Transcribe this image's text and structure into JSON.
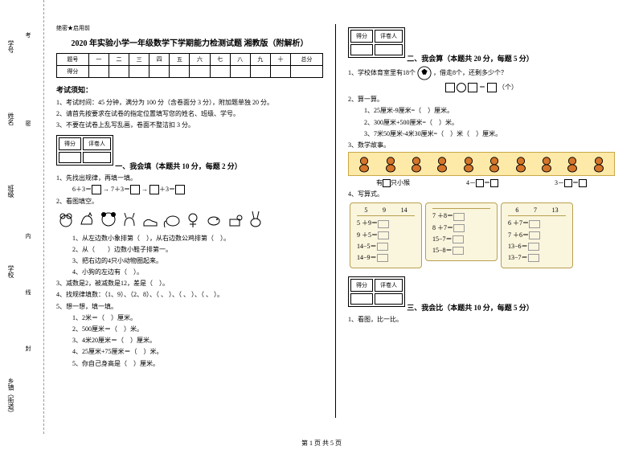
{
  "binding": {
    "labels": [
      "学号",
      "姓名",
      "班级",
      "学校",
      "乡镇（街道）"
    ],
    "marks": [
      "考",
      "密",
      "内",
      "线",
      "封"
    ]
  },
  "header_mark": "绝密★启用前",
  "title": "2020 年实验小学一年级数学下学期能力检测试题 湘教版（附解析）",
  "score_table": {
    "headers": [
      "题号",
      "一",
      "二",
      "三",
      "四",
      "五",
      "六",
      "七",
      "八",
      "九",
      "十",
      "总分"
    ],
    "row_label": "得分"
  },
  "exam_notice_title": "考试须知：",
  "notices": [
    "1、考试时间：45 分钟，满分为 100 分（含卷面分 3 分），附加题单独 20 分。",
    "2、请首先按要求在试卷的指定位置填写您的姓名、班级、学号。",
    "3、不要在试卷上乱写乱画，卷面不整洁扣 3 分。"
  ],
  "scorebox": {
    "c1": "得分",
    "c2": "评卷人"
  },
  "section1": {
    "title": "一、我会填（本题共 10 分，每题 2 分）",
    "q1": "1、先找出规律，再填一填。",
    "q1_eq": [
      "6＋3＝",
      "7＋3＝",
      "＋3＝"
    ],
    "q2": "2、看图填空。",
    "q2_items": [
      "1、从左边数小象排第（　），从右边数公鸡排第（　）。",
      "2、从（　　）边数小鞋子排第一。",
      "3、把右边的4只小动物圈起来。",
      "4、小狗的左边有（　）。"
    ],
    "q3": "3、减数是2，被减数是12，差是（　）。",
    "q4": "4、找规律填数：（1、9）、（2、8）、（  、  ）、（  、  ）、（  、  ）。",
    "q5": "5、想一想，填一填。",
    "q5_items": [
      "1、2米＝（　）厘米。",
      "2、500厘米＝（　）米。",
      "3、4米20厘米＝（　）厘米。",
      "4、25厘米+75厘米＝（　）米。",
      "5、你自己身高是（　）厘米。"
    ]
  },
  "section2": {
    "title": "二、我会算（本题共 20 分，每题 5 分）",
    "q1": "1、学校体育室里有18个",
    "q1_tail": "，借走8个，还剩多少个？",
    "q1_unit": "（个）",
    "q2": "2、算一算。",
    "q2_items": [
      "1、25厘米-9厘米=（　）厘米。",
      "2、300厘米+500厘米=（　）米。",
      "3、7米50厘米-4米30厘米=（　）米（　）厘米。"
    ],
    "q3": "3、数学故事。",
    "q3_labels": [
      "有",
      "只小猴",
      "4－",
      "＝",
      "3－",
      "＝"
    ],
    "q4": "4、写算式。",
    "cards": [
      {
        "h": [
          "5",
          "9",
          "14"
        ],
        "rows": [
          "5 ＋9＝",
          "9 ＋5＝",
          "14−5＝",
          "14−9＝"
        ]
      },
      {
        "h": [
          "",
          "",
          ""
        ],
        "rows": [
          "7 ＋8＝",
          "8 ＋7＝",
          "15−7＝",
          "15−8＝"
        ]
      },
      {
        "h": [
          "6",
          "7",
          "13"
        ],
        "rows": [
          "6 ＋7＝",
          "7 ＋6＝",
          "13−6＝",
          "13−7＝"
        ]
      }
    ]
  },
  "section3": {
    "title": "三、我会比（本题共 10 分，每题 5 分）",
    "q1": "1、看图，比一比。"
  },
  "footer": "第 1 页 共 5 页"
}
